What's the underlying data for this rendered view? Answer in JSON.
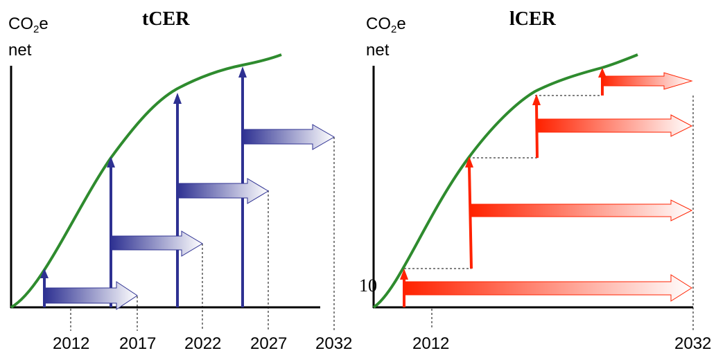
{
  "panels": [
    {
      "id": "tcer",
      "title": "tCER",
      "y_label": {
        "main": "CO",
        "sub": "2",
        "suffix": "e",
        "line2": "net"
      },
      "x_tick_labels": [
        "2012",
        "2017",
        "2022",
        "2027",
        "2032"
      ],
      "arrow_color": "#2e3192"
    },
    {
      "id": "lcer",
      "title": "lCER",
      "y_label": {
        "main": "CO",
        "sub": "2",
        "suffix": "e",
        "line2": "net"
      },
      "x_tick_labels": [
        "2012",
        "2032"
      ],
      "y_marker_label": "10",
      "arrow_color": "#ff2200"
    }
  ],
  "colors": {
    "curve": "#2e8b2e",
    "axis": "#000000",
    "tcer_arrow": "#2e3192",
    "lcer_arrow": "#ff2200"
  }
}
